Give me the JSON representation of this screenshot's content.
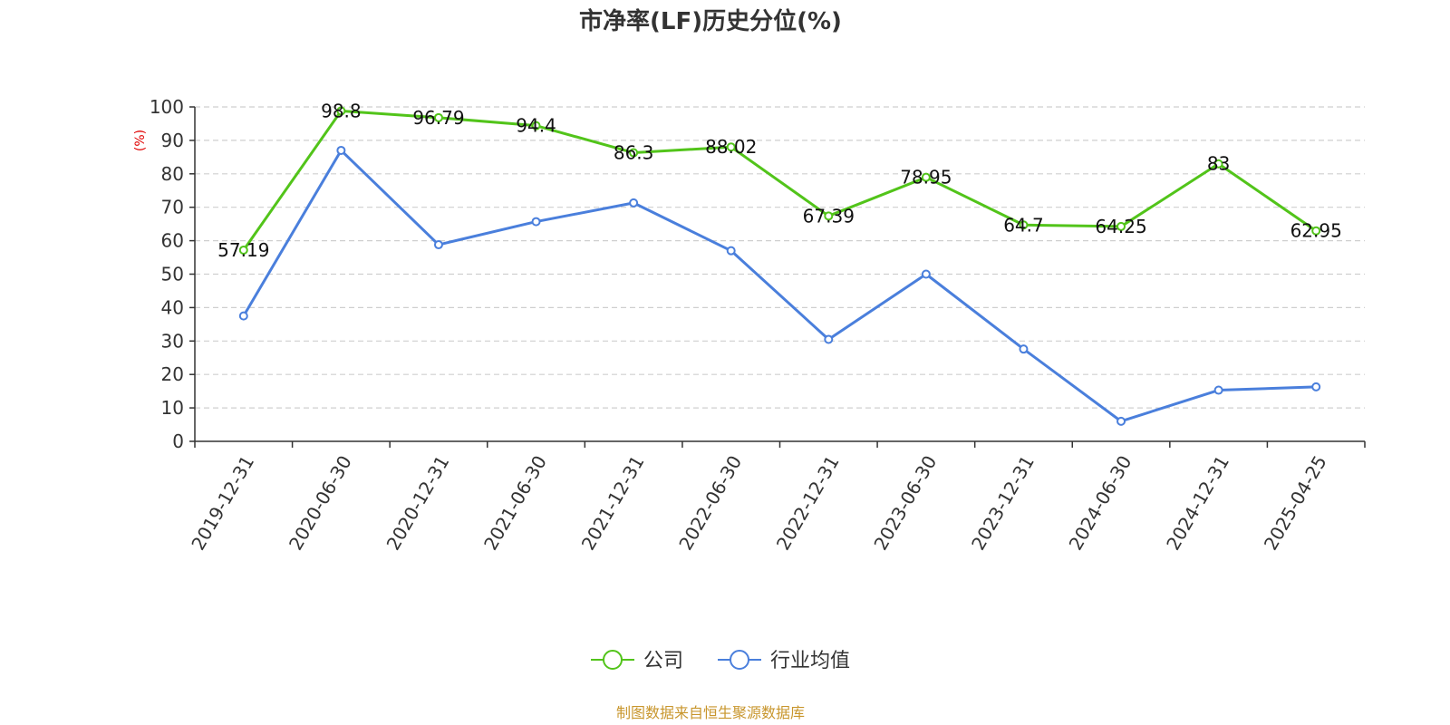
{
  "chart_data": {
    "type": "line",
    "title": "市净率(LF)历史分位(%)",
    "ylabel": "(%)",
    "xlabel": "",
    "categories": [
      "2019-12-31",
      "2020-06-30",
      "2020-12-31",
      "2021-06-30",
      "2021-12-31",
      "2022-06-30",
      "2022-12-31",
      "2023-06-30",
      "2023-12-31",
      "2024-06-30",
      "2024-12-31",
      "2025-04-25"
    ],
    "ylim": [
      0,
      100
    ],
    "yticks": [
      "0",
      "10",
      "20",
      "30",
      "40",
      "50",
      "60",
      "70",
      "80",
      "90",
      "100"
    ],
    "grid": "horizontal dashed",
    "legend_position": "bottom-center",
    "series": [
      {
        "name": "公司",
        "color": "#52c41a",
        "values": [
          57.19,
          98.8,
          96.79,
          94.4,
          86.3,
          88.02,
          67.39,
          78.95,
          64.7,
          64.25,
          83,
          62.95
        ],
        "labels": [
          "57.19",
          "98.8",
          "96.79",
          "94.4",
          "86.3",
          "88.02",
          "67.39",
          "78.95",
          "64.7",
          "64.25",
          "83",
          "62.95"
        ]
      },
      {
        "name": "行业均值",
        "color": "#4a7fdc",
        "values": [
          37.5,
          87,
          58.8,
          65.7,
          71.3,
          57,
          30.5,
          50,
          27.6,
          6,
          15.3,
          16.3
        ]
      }
    ],
    "source": "制图数据来自恒生聚源数据库"
  }
}
